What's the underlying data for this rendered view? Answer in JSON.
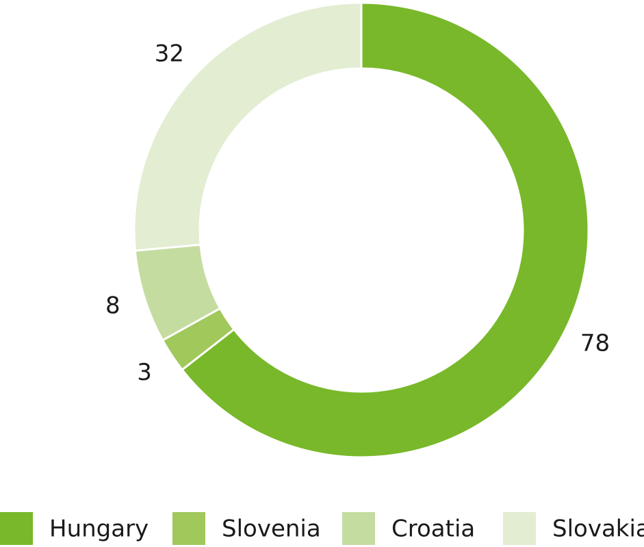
{
  "chart_data": {
    "type": "donut",
    "categories": [
      "Hungary",
      "Slovenia",
      "Croatia",
      "Slovakia"
    ],
    "values": [
      78,
      3,
      8,
      32
    ],
    "colors": [
      "#78b82a",
      "#a0c85a",
      "#c5dca0",
      "#e2edd2"
    ],
    "legend": "bottom"
  }
}
